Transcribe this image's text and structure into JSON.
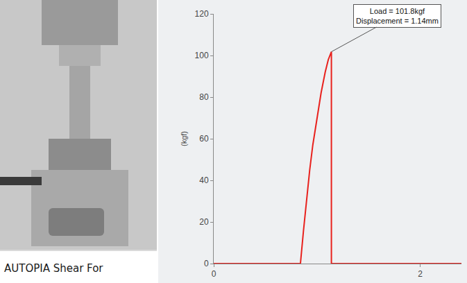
{
  "photo": {
    "caption": "AUTOPIA Shear For"
  },
  "chart_data": {
    "type": "line",
    "x": [
      0,
      0.84,
      0.87,
      0.9,
      0.93,
      0.96,
      1.0,
      1.04,
      1.08,
      1.11,
      1.14,
      1.14,
      2.4
    ],
    "values": [
      0,
      0,
      16,
      31,
      45,
      57,
      70,
      82,
      92,
      98,
      101.8,
      0,
      0
    ],
    "color": "#e8211d",
    "line_style": "solid",
    "y_label": "(kgf)",
    "xlim": [
      0,
      2.4
    ],
    "xticks": [
      0,
      2
    ],
    "ylim": [
      0,
      120
    ],
    "yticks": [
      0,
      20,
      40,
      60,
      80,
      100,
      120
    ],
    "grid": false,
    "annotations": [
      {
        "text": [
          "Load = 101.8kgf",
          "Displacement = 1.14mm"
        ],
        "x": 1.14,
        "y": 101.8
      }
    ]
  }
}
